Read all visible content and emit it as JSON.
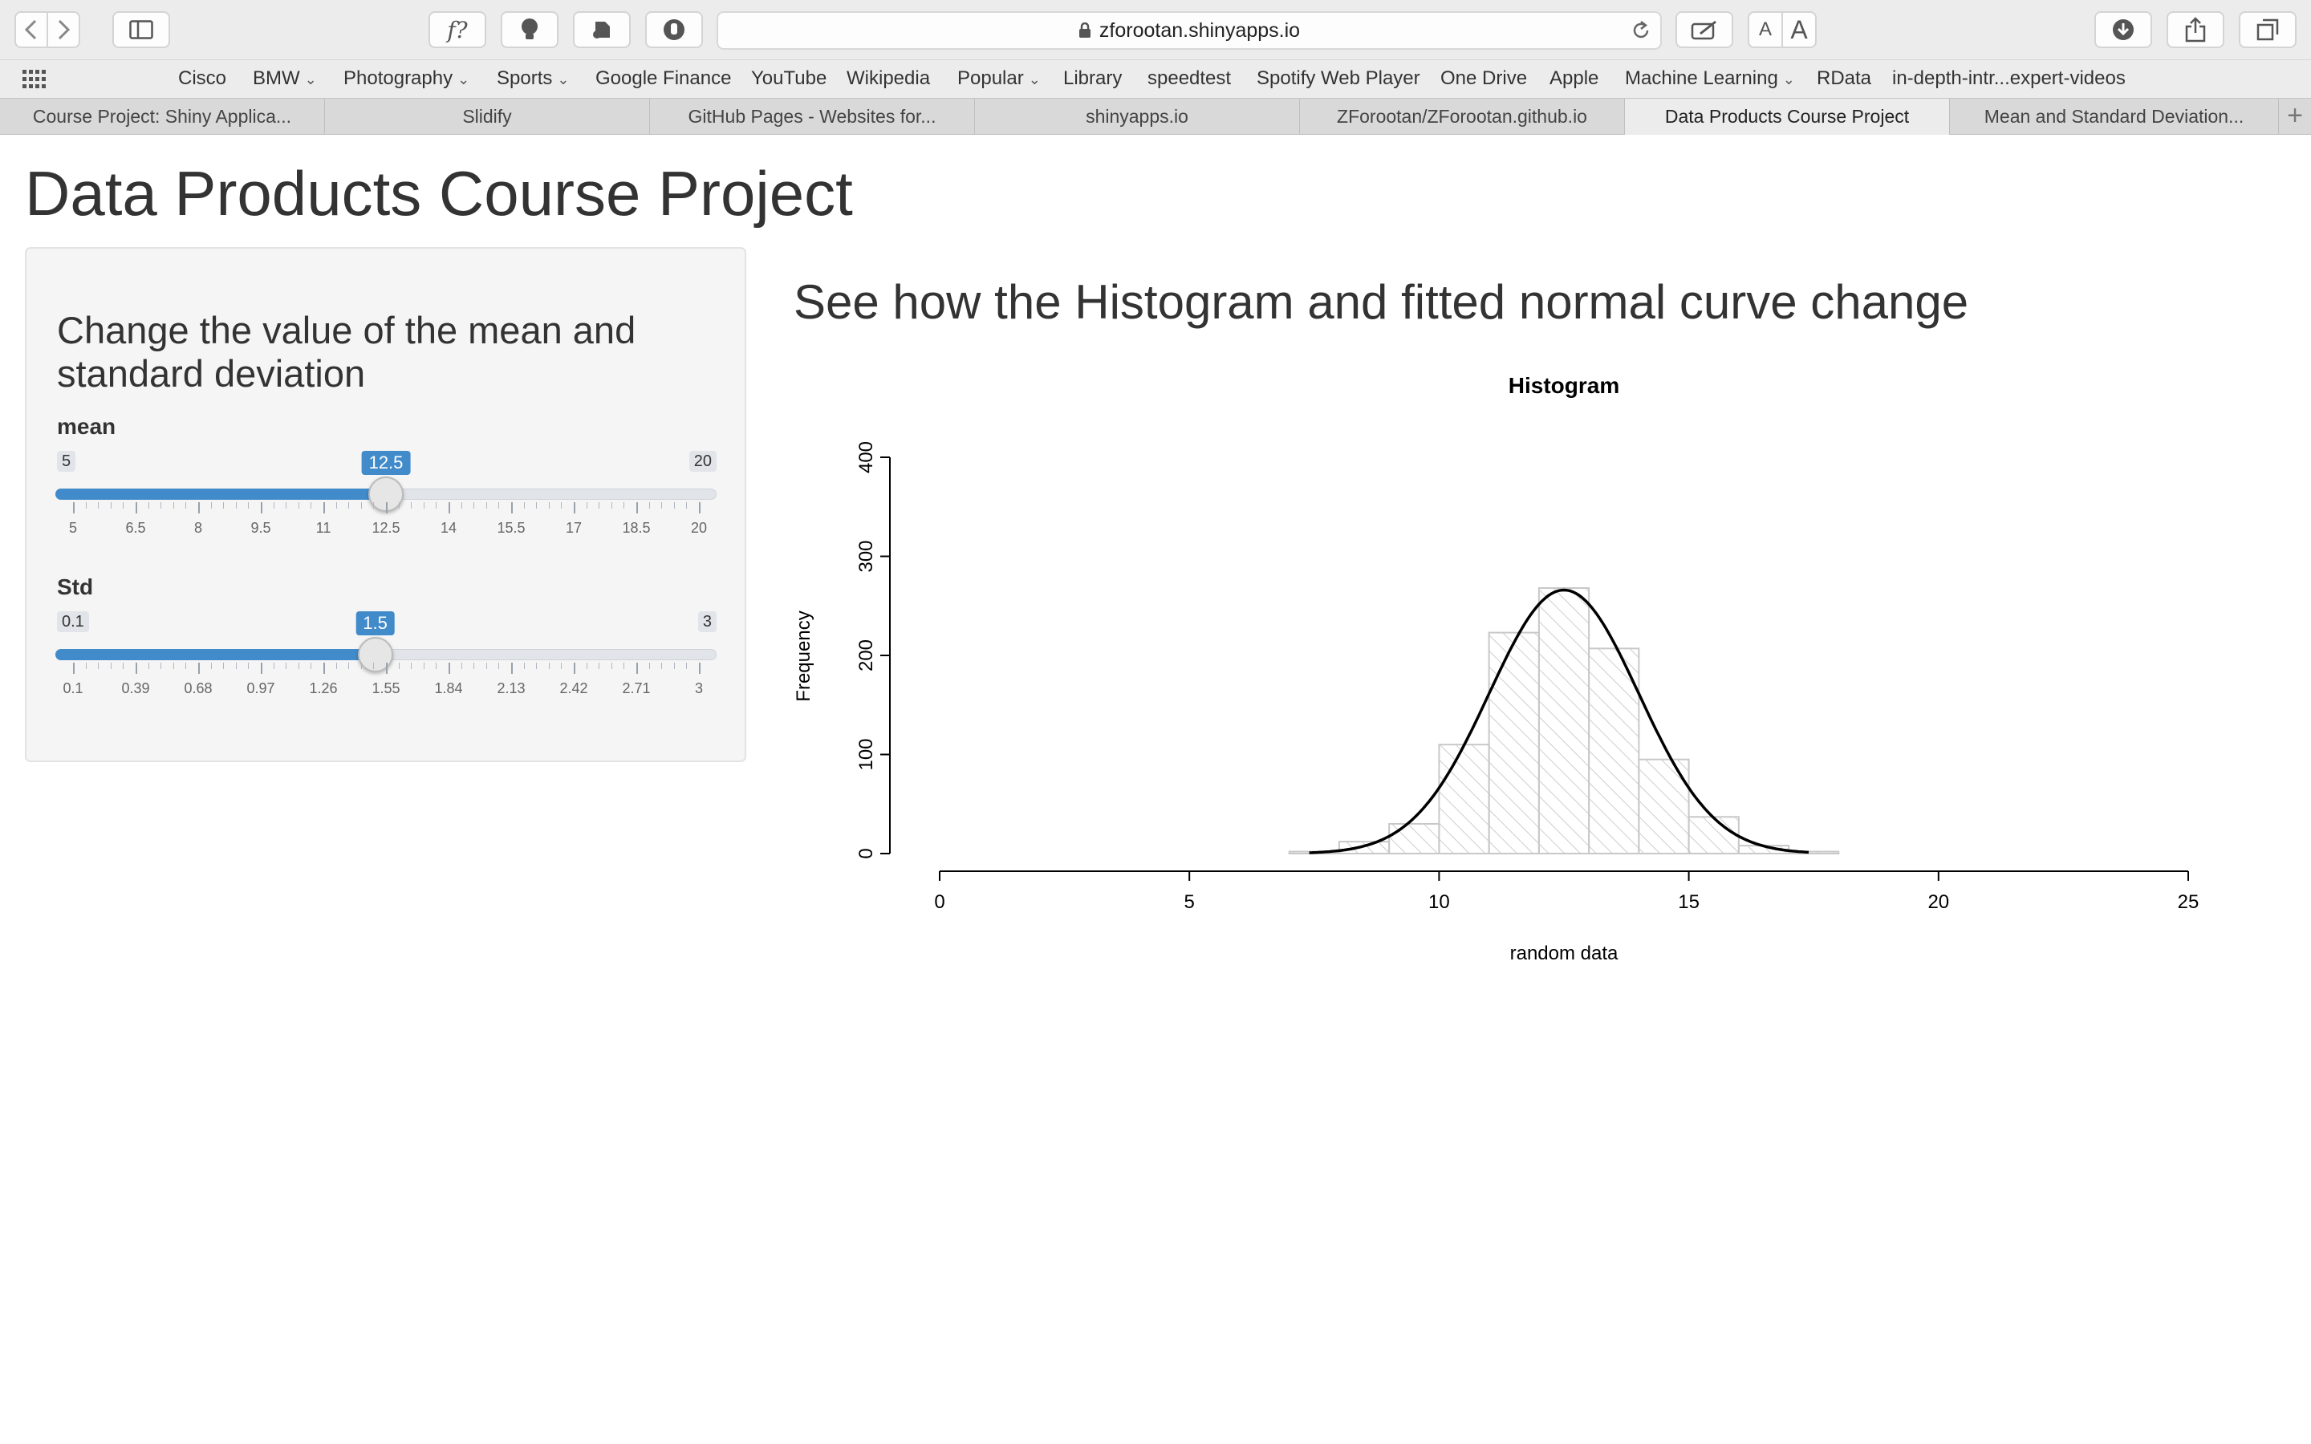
{
  "browser": {
    "url": "zforootan.shinyapps.io",
    "toolbar_icons": [
      "back-icon",
      "forward-icon",
      "sidebar-icon",
      "function-icon",
      "lightbulb-icon",
      "evernote-icon",
      "hand-icon",
      "reload-icon",
      "annotate-icon",
      "download-icon",
      "share-icon",
      "tabs-icon"
    ],
    "font_small_label": "A",
    "font_large_label": "A",
    "function_label": "f?",
    "bookmarks": [
      {
        "label": "Cisco",
        "menu": false
      },
      {
        "label": "BMW",
        "menu": true
      },
      {
        "label": "Photography",
        "menu": true
      },
      {
        "label": "Sports",
        "menu": true
      },
      {
        "label": "Google Finance",
        "menu": false
      },
      {
        "label": "YouTube",
        "menu": false
      },
      {
        "label": "Wikipedia",
        "menu": false
      },
      {
        "label": "Popular",
        "menu": true
      },
      {
        "label": "Library",
        "menu": false
      },
      {
        "label": "speedtest",
        "menu": false
      },
      {
        "label": "Spotify Web Player",
        "menu": false
      },
      {
        "label": "One Drive",
        "menu": false
      },
      {
        "label": "Apple",
        "menu": false
      },
      {
        "label": "Machine Learning",
        "menu": true
      },
      {
        "label": "RData",
        "menu": false
      },
      {
        "label": "in-depth-intr...expert-videos",
        "menu": false
      }
    ],
    "tabs": [
      {
        "label": "Course Project: Shiny Applica...",
        "active": false
      },
      {
        "label": "Slidify",
        "active": false
      },
      {
        "label": "GitHub Pages - Websites for...",
        "active": false
      },
      {
        "label": "shinyapps.io",
        "active": false
      },
      {
        "label": "ZForootan/ZForootan.github.io",
        "active": false
      },
      {
        "label": "Data Products Course Project",
        "active": true
      },
      {
        "label": "Mean and Standard Deviation...",
        "active": false
      }
    ],
    "new_tab_label": "+"
  },
  "page": {
    "title": "Data Products Course Project",
    "sidebar": {
      "heading": "Change the value of the mean and standard deviation",
      "sliders": [
        {
          "label": "mean",
          "min": 5,
          "max": 20,
          "value": 12.5,
          "min_label": "5",
          "max_label": "20",
          "value_label": "12.5",
          "tick_labels": [
            "5",
            "6.5",
            "8",
            "9.5",
            "11",
            "12.5",
            "14",
            "15.5",
            "17",
            "18.5",
            "20"
          ]
        },
        {
          "label": "Std",
          "min": 0.1,
          "max": 3,
          "value": 1.5,
          "min_label": "0.1",
          "max_label": "3",
          "value_label": "1.5",
          "tick_labels": [
            "0.1",
            "0.39",
            "0.68",
            "0.97",
            "1.26",
            "1.55",
            "1.84",
            "2.13",
            "2.42",
            "2.71",
            "3"
          ]
        }
      ]
    },
    "main_heading": "See how the Histogram and fitted normal curve change"
  },
  "chart_data": {
    "type": "bar",
    "title": "Histogram",
    "xlabel": "random data",
    "ylabel": "Frequency",
    "xlim": [
      0,
      25
    ],
    "ylim": [
      0,
      400
    ],
    "x_ticks": [
      0,
      5,
      10,
      15,
      20,
      25
    ],
    "y_ticks": [
      0,
      100,
      200,
      300,
      400
    ],
    "bins": [
      {
        "x0": 7,
        "x1": 8,
        "count": 2
      },
      {
        "x0": 8,
        "x1": 9,
        "count": 12
      },
      {
        "x0": 9,
        "x1": 10,
        "count": 30
      },
      {
        "x0": 10,
        "x1": 11,
        "count": 110
      },
      {
        "x0": 11,
        "x1": 12,
        "count": 223
      },
      {
        "x0": 12,
        "x1": 13,
        "count": 268
      },
      {
        "x0": 13,
        "x1": 14,
        "count": 207
      },
      {
        "x0": 14,
        "x1": 15,
        "count": 95
      },
      {
        "x0": 15,
        "x1": 16,
        "count": 37
      },
      {
        "x0": 16,
        "x1": 17,
        "count": 8
      },
      {
        "x0": 17,
        "x1": 18,
        "count": 2
      }
    ],
    "fit_curve": {
      "mean": 12.5,
      "sd": 1.5,
      "peak": 266,
      "x_range": [
        7.4,
        17.4
      ]
    },
    "bar_color": "#c8c8c8",
    "curve_color": "#000000"
  }
}
